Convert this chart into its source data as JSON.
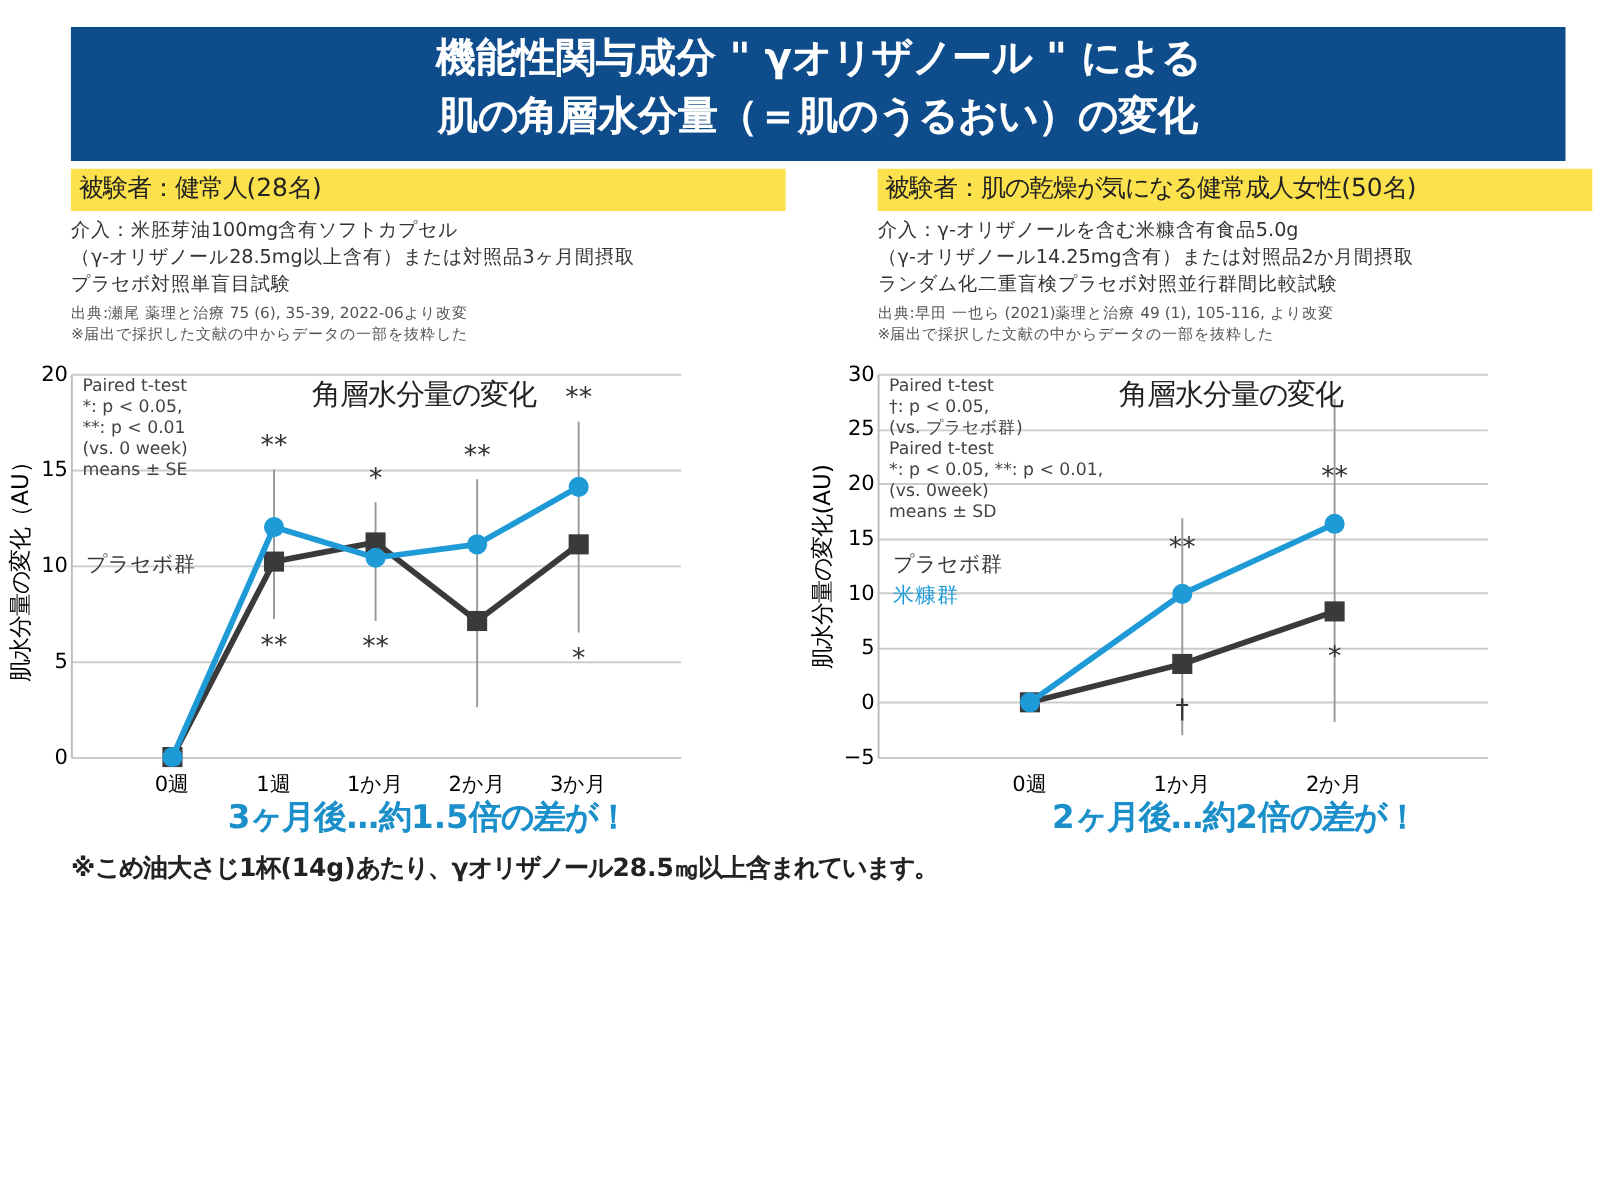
{
  "chart_data": [
    {
      "type": "other",
      "title": "機能性関与成分 \" γオリザノール \" による",
      "subtitle": "肌の角層水分量（＝肌のうるおい）の変化",
      "color": "#0e4c8c",
      "annotations": [
        "※こめ油大さじ1杯(14g)あたり、γオリザノール28.5㎎以上含まれています。"
      ]
    },
    {
      "type": "line",
      "title": "角層水分量の変化",
      "subtitle": "被験者：健常人(28名)",
      "ylabel": "肌水分量の変化（AU）",
      "categories": [
        "0週",
        "1週",
        "1か月",
        "2か月",
        "3か月"
      ],
      "series": [
        {
          "name": "プラセボ群",
          "color": "#3a3a3a",
          "marker": "square",
          "values": [
            0,
            10.2,
            11.2,
            7.1,
            11.1
          ],
          "errors": [
            null,
            [
              7.2,
              15.0
            ],
            [
              7.1,
              13.3
            ],
            [
              2.6,
              14.5
            ],
            [
              6.5,
              17.5
            ]
          ]
        },
        {
          "color": "#1e9bd7",
          "marker": "circle",
          "values": [
            0,
            12.0,
            10.4,
            11.1,
            14.1
          ]
        }
      ],
      "ylim": [
        0,
        20
      ],
      "yticks": [
        0,
        5,
        10,
        15,
        20
      ],
      "grid": "y",
      "legend": "left",
      "annotations": [
        "介入：米胚芽油100mg含有ソフトカプセル",
        "（γ-オリザノール28.5mg以上含有）または対照品3ヶ月間摂取",
        "プラセボ対照単盲目試験",
        "出典:瀬尾 薬理と治療 75 (6), 35-39, 2022-06より改変",
        "※届出で採択した文献の中からデータの一部を抜粋した",
        "Paired t-test\n*: p < 0.05,\n**: p < 0.01\n(vs. 0 week)\nmeans ± SE",
        "3ヶ月後…約1.5倍の差が！",
        {
          "text": "**",
          "x": "1週",
          "y": 15.0
        },
        {
          "text": "**",
          "x": "1週",
          "y": 7.2
        },
        {
          "text": "*",
          "x": "1か月",
          "y": 13.3
        },
        {
          "text": "**",
          "x": "1か月",
          "y": 7.1
        },
        {
          "text": "**",
          "x": "2か月",
          "y": 14.5
        },
        {
          "text": "**",
          "x": "3か月",
          "y": 17.5
        },
        {
          "text": "*",
          "x": "3か月",
          "y": 6.5
        }
      ]
    },
    {
      "type": "line",
      "title": "角層水分量の変化",
      "subtitle": "被験者：肌の乾燥が気になる健常成人女性(50名)",
      "ylabel": "肌水分量の変化(AU)",
      "categories": [
        "0週",
        "1か月",
        "2か月"
      ],
      "series": [
        {
          "name": "プラセボ群",
          "color": "#3a3a3a",
          "marker": "square",
          "values": [
            0,
            3.5,
            8.3
          ],
          "errors": [
            null,
            [
              -3.0,
              16.8
            ],
            [
              -1.8,
              27.7
            ]
          ]
        },
        {
          "name": "米糠群",
          "color": "#1e9bd7",
          "marker": "circle",
          "values": [
            0,
            9.9,
            16.3
          ]
        }
      ],
      "ylim": [
        -5,
        30
      ],
      "yticks": [
        -5,
        0,
        5,
        10,
        15,
        20,
        25,
        30
      ],
      "grid": "y",
      "legend": "left",
      "annotations": [
        "介入：γ-オリザノールを含む米糠含有食品5.0g",
        "（γ-オリザノール14.25mg含有）または対照品2か月間摂取",
        "ランダム化二重盲検プラセボ対照並行群間比較試験",
        "出典:早田 一也ら (2021)薬理と治療 49 (1), 105-116, より改変",
        "※届出で採択した文献の中からデータの一部を抜粋した",
        "Paired t-test\n†: p < 0.05,\n(vs. プラセボ群)\nPaired t-test\n*: p < 0.05, **: p < 0.01,\n(vs. 0week)\nmeans ± SD",
        "2ヶ月後…約2倍の差が！",
        {
          "text": "**",
          "x": "1か月",
          "y": 9.9
        },
        {
          "text": "**",
          "x": "2か月",
          "y": 16.3
        },
        {
          "text": "*",
          "x": "2か月",
          "y": 8.3
        },
        {
          "text": "†",
          "x": "1か月",
          "y": 3.5
        }
      ]
    }
  ]
}
